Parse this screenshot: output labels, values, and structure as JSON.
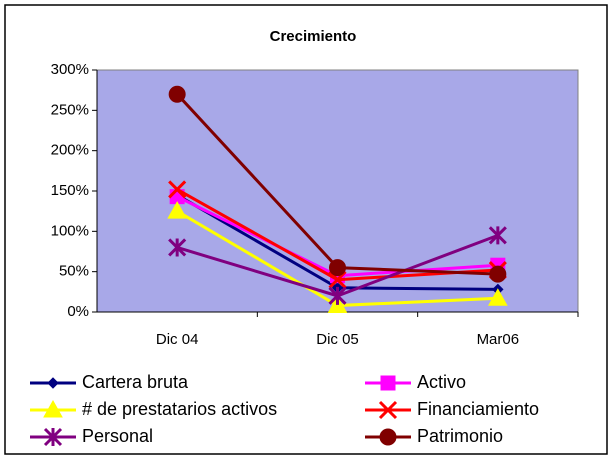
{
  "chart_data": {
    "type": "line",
    "title": "Crecimiento",
    "categories": [
      "Dic 04",
      "Dic 05",
      "Mar06"
    ],
    "series": [
      {
        "name": "Cartera bruta",
        "color": "#000080",
        "marker": "diamond",
        "values": [
          145,
          30,
          28
        ]
      },
      {
        "name": "Activo",
        "color": "#ff00ff",
        "marker": "square",
        "values": [
          143,
          45,
          58
        ]
      },
      {
        "name": "# de prestatarios activos",
        "color": "#ffff00",
        "marker": "triangle",
        "values": [
          125,
          8,
          17
        ]
      },
      {
        "name": "Financiamiento",
        "color": "#ff0000",
        "marker": "x",
        "values": [
          152,
          40,
          52
        ]
      },
      {
        "name": "Personal",
        "color": "#800080",
        "marker": "star",
        "values": [
          80,
          20,
          95
        ]
      },
      {
        "name": "Patrimonio",
        "color": "#800000",
        "marker": "circle",
        "values": [
          270,
          55,
          47
        ]
      }
    ],
    "ylim": [
      0,
      300
    ],
    "yticks": [
      {
        "value": 0,
        "label": "0%"
      },
      {
        "value": 50,
        "label": "50%"
      },
      {
        "value": 100,
        "label": "100%"
      },
      {
        "value": 150,
        "label": "150%"
      },
      {
        "value": 200,
        "label": "200%"
      },
      {
        "value": 250,
        "label": "250%"
      },
      {
        "value": 300,
        "label": "300%"
      }
    ],
    "grid": false,
    "plot_color": "#a8a8e8"
  }
}
